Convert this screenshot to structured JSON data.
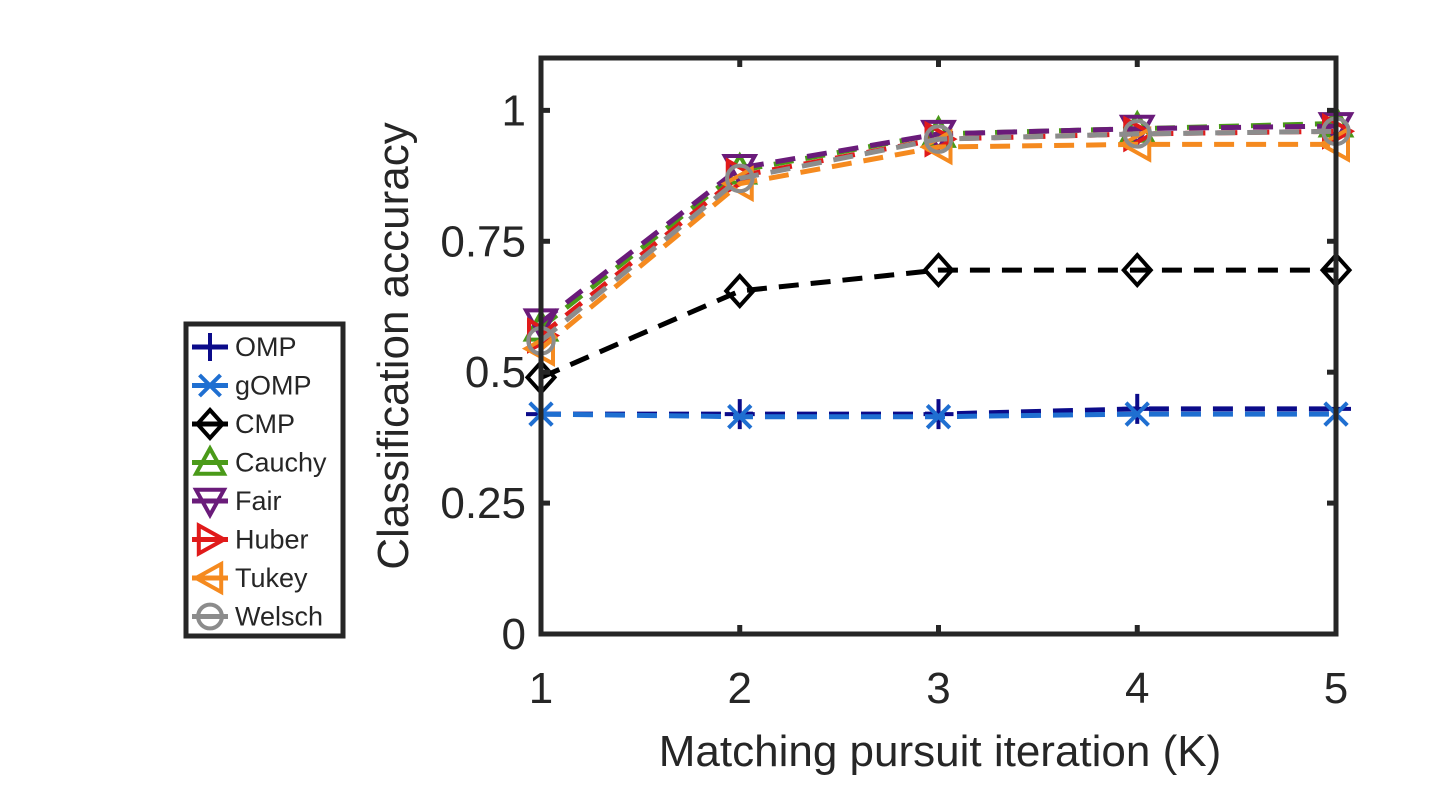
{
  "chart_data": {
    "type": "line",
    "title": "",
    "xlabel": "Matching pursuit iteration (K)",
    "ylabel": "Classification accuracy",
    "x": [
      1,
      2,
      3,
      4,
      5
    ],
    "xticks": [
      1,
      2,
      3,
      4,
      5
    ],
    "xtick_labels": [
      "1",
      "2",
      "3",
      "4",
      "5"
    ],
    "yticks": [
      0,
      0.25,
      0.5,
      0.75,
      1
    ],
    "ytick_labels": [
      "0",
      "0.25",
      "0.5",
      "0.75",
      "1"
    ],
    "xlim": [
      1,
      5
    ],
    "ylim": [
      0,
      1.1
    ],
    "grid": false,
    "legend_position": "outside-left",
    "series": [
      {
        "name": "OMP",
        "color": "#0b0b8a",
        "marker": "plus",
        "values": [
          0.42,
          0.42,
          0.42,
          0.43,
          0.43
        ]
      },
      {
        "name": "gOMP",
        "color": "#1f6fd1",
        "marker": "x",
        "values": [
          0.42,
          0.415,
          0.415,
          0.42,
          0.42
        ]
      },
      {
        "name": "CMP",
        "color": "#000000",
        "marker": "diamond",
        "values": [
          0.49,
          0.655,
          0.695,
          0.695,
          0.695
        ]
      },
      {
        "name": "Cauchy",
        "color": "#4a9a19",
        "marker": "triangle-up",
        "values": [
          0.585,
          0.885,
          0.955,
          0.965,
          0.975
        ]
      },
      {
        "name": "Fair",
        "color": "#6a1b7a",
        "marker": "triangle-down",
        "values": [
          0.595,
          0.89,
          0.955,
          0.965,
          0.97
        ]
      },
      {
        "name": "Huber",
        "color": "#e01a1a",
        "marker": "triangle-right",
        "values": [
          0.57,
          0.875,
          0.945,
          0.955,
          0.96
        ]
      },
      {
        "name": "Tukey",
        "color": "#f58a1f",
        "marker": "triangle-left",
        "values": [
          0.545,
          0.86,
          0.93,
          0.935,
          0.935
        ]
      },
      {
        "name": "Welsch",
        "color": "#8c8c8c",
        "marker": "circle",
        "values": [
          0.56,
          0.87,
          0.945,
          0.955,
          0.96
        ]
      }
    ]
  }
}
